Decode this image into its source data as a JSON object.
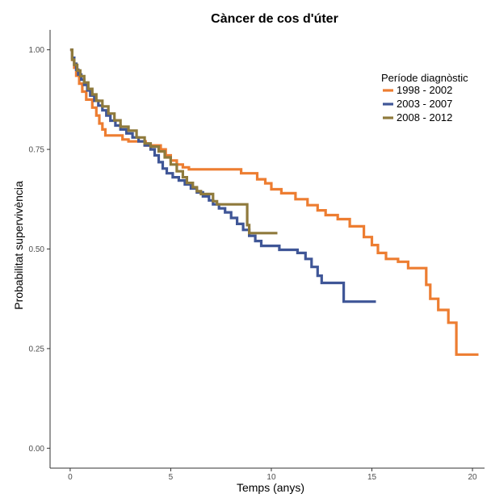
{
  "chart_data": {
    "type": "line",
    "step": true,
    "title": "Càncer de cos d'úter",
    "xlabel": "Temps (anys)",
    "ylabel": "Probabilitat supervivència",
    "xlim": [
      -1,
      20.6
    ],
    "ylim": [
      -0.05,
      1.05
    ],
    "x_ticks": [
      0,
      5,
      10,
      15,
      20
    ],
    "x_tick_labels": [
      "0",
      "5",
      "10",
      "15",
      "20"
    ],
    "y_ticks": [
      0,
      0.25,
      0.5,
      0.75,
      1
    ],
    "y_tick_labels": [
      "0.00",
      "0.25",
      "0.50",
      "0.75",
      "1.00"
    ],
    "grid": false,
    "legend": {
      "title": "Període diagnòstic",
      "position": "top-right"
    },
    "series": [
      {
        "name": "1998 - 2002",
        "color": "#ED7D31",
        "points": [
          [
            0,
            1.0
          ],
          [
            0.1,
            0.975
          ],
          [
            0.2,
            0.955
          ],
          [
            0.3,
            0.935
          ],
          [
            0.45,
            0.915
          ],
          [
            0.6,
            0.895
          ],
          [
            0.8,
            0.875
          ],
          [
            1.1,
            0.855
          ],
          [
            1.3,
            0.835
          ],
          [
            1.45,
            0.815
          ],
          [
            1.6,
            0.8
          ],
          [
            1.75,
            0.785
          ],
          [
            2.6,
            0.775
          ],
          [
            2.9,
            0.77
          ],
          [
            3.75,
            0.76
          ],
          [
            4.5,
            0.75
          ],
          [
            4.75,
            0.735
          ],
          [
            5.0,
            0.722
          ],
          [
            5.3,
            0.712
          ],
          [
            5.6,
            0.705
          ],
          [
            5.9,
            0.7
          ],
          [
            8.5,
            0.69
          ],
          [
            9.3,
            0.675
          ],
          [
            9.7,
            0.665
          ],
          [
            10.0,
            0.65
          ],
          [
            10.5,
            0.64
          ],
          [
            11.2,
            0.625
          ],
          [
            11.8,
            0.61
          ],
          [
            12.3,
            0.597
          ],
          [
            12.7,
            0.585
          ],
          [
            13.3,
            0.575
          ],
          [
            13.9,
            0.557
          ],
          [
            14.6,
            0.53
          ],
          [
            15.0,
            0.51
          ],
          [
            15.3,
            0.49
          ],
          [
            15.7,
            0.475
          ],
          [
            16.3,
            0.468
          ],
          [
            16.8,
            0.452
          ],
          [
            17.7,
            0.41
          ],
          [
            17.9,
            0.375
          ],
          [
            18.3,
            0.347
          ],
          [
            18.8,
            0.315
          ],
          [
            19.2,
            0.235
          ],
          [
            20.3,
            0.235
          ]
        ]
      },
      {
        "name": "2003 - 2007",
        "color": "#3F5697",
        "points": [
          [
            0,
            1.0
          ],
          [
            0.1,
            0.98
          ],
          [
            0.2,
            0.965
          ],
          [
            0.3,
            0.95
          ],
          [
            0.4,
            0.938
          ],
          [
            0.55,
            0.925
          ],
          [
            0.7,
            0.912
          ],
          [
            0.85,
            0.898
          ],
          [
            1.0,
            0.885
          ],
          [
            1.2,
            0.872
          ],
          [
            1.4,
            0.86
          ],
          [
            1.6,
            0.848
          ],
          [
            1.8,
            0.835
          ],
          [
            2.0,
            0.822
          ],
          [
            2.25,
            0.81
          ],
          [
            2.5,
            0.8
          ],
          [
            2.8,
            0.79
          ],
          [
            3.1,
            0.78
          ],
          [
            3.4,
            0.77
          ],
          [
            3.7,
            0.76
          ],
          [
            4.0,
            0.75
          ],
          [
            4.2,
            0.735
          ],
          [
            4.4,
            0.718
          ],
          [
            4.6,
            0.702
          ],
          [
            4.8,
            0.69
          ],
          [
            5.1,
            0.68
          ],
          [
            5.4,
            0.672
          ],
          [
            5.7,
            0.662
          ],
          [
            6.0,
            0.652
          ],
          [
            6.3,
            0.642
          ],
          [
            6.6,
            0.632
          ],
          [
            6.9,
            0.622
          ],
          [
            7.1,
            0.612
          ],
          [
            7.4,
            0.602
          ],
          [
            7.7,
            0.592
          ],
          [
            8.0,
            0.578
          ],
          [
            8.3,
            0.563
          ],
          [
            8.6,
            0.548
          ],
          [
            8.9,
            0.533
          ],
          [
            9.2,
            0.52
          ],
          [
            9.5,
            0.508
          ],
          [
            10.4,
            0.498
          ],
          [
            11.3,
            0.49
          ],
          [
            11.7,
            0.475
          ],
          [
            12.0,
            0.455
          ],
          [
            12.3,
            0.433
          ],
          [
            12.5,
            0.415
          ],
          [
            13.6,
            0.368
          ],
          [
            15.2,
            0.368
          ]
        ]
      },
      {
        "name": "2008 - 2012",
        "color": "#8F7A3C",
        "points": [
          [
            0,
            1.0
          ],
          [
            0.1,
            0.975
          ],
          [
            0.2,
            0.962
          ],
          [
            0.35,
            0.948
          ],
          [
            0.5,
            0.934
          ],
          [
            0.7,
            0.918
          ],
          [
            0.9,
            0.902
          ],
          [
            1.1,
            0.888
          ],
          [
            1.3,
            0.872
          ],
          [
            1.6,
            0.858
          ],
          [
            1.9,
            0.84
          ],
          [
            2.2,
            0.823
          ],
          [
            2.5,
            0.807
          ],
          [
            2.9,
            0.797
          ],
          [
            3.3,
            0.78
          ],
          [
            3.7,
            0.765
          ],
          [
            4.0,
            0.757
          ],
          [
            4.4,
            0.745
          ],
          [
            4.7,
            0.73
          ],
          [
            5.0,
            0.712
          ],
          [
            5.3,
            0.695
          ],
          [
            5.6,
            0.68
          ],
          [
            5.8,
            0.666
          ],
          [
            6.1,
            0.655
          ],
          [
            6.3,
            0.645
          ],
          [
            6.5,
            0.638
          ],
          [
            7.1,
            0.62
          ],
          [
            7.3,
            0.612
          ],
          [
            8.8,
            0.56
          ],
          [
            8.9,
            0.54
          ],
          [
            10.3,
            0.54
          ]
        ]
      }
    ]
  }
}
